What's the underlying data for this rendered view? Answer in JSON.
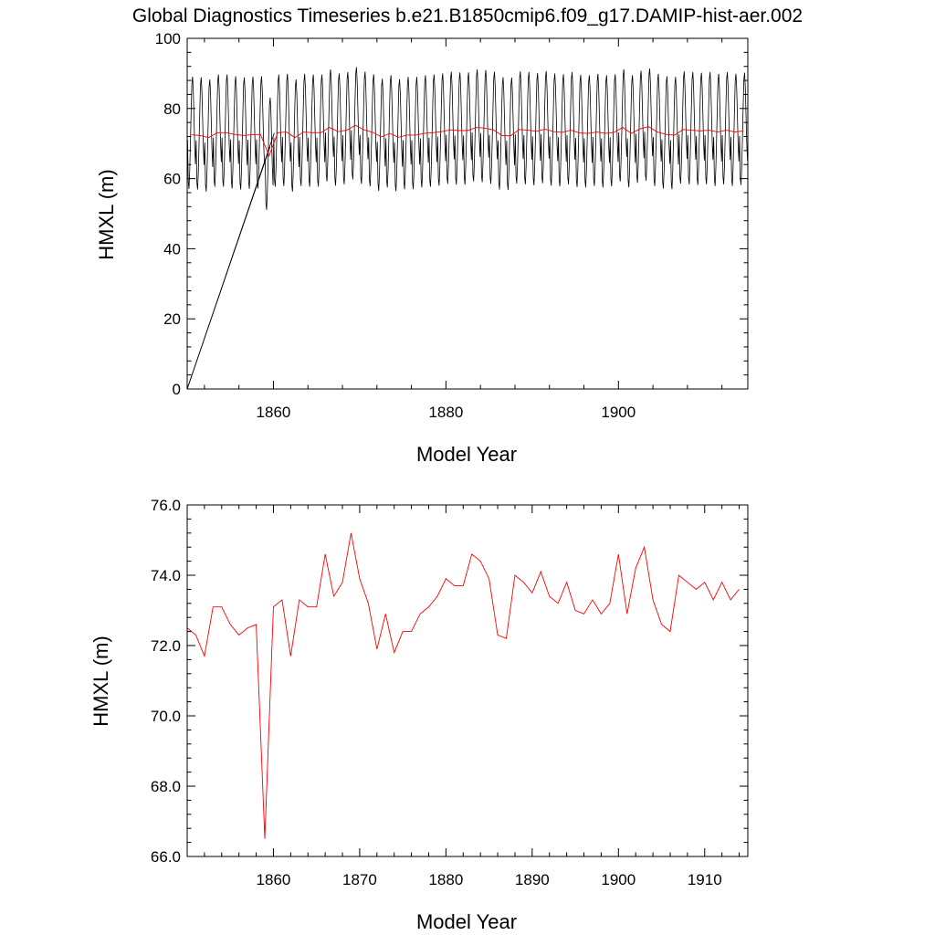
{
  "title": "Global Diagnostics Timeseries b.e21.B1850cmip6.f09_g17.DAMIP-hist-aer.002",
  "colors": {
    "monthly": "#000000",
    "annual": "#ff0000",
    "axes": "#000000"
  },
  "chart_data": [
    {
      "type": "line",
      "xlabel": "Model Year",
      "ylabel": "HMXL (m)",
      "xlim": [
        1850,
        1915
      ],
      "ylim": [
        0,
        100
      ],
      "xticks": [
        1860,
        1880,
        1900
      ],
      "xtick_labels": [
        "1860",
        "1880",
        "1900"
      ],
      "yticks": [
        0,
        20,
        40,
        60,
        80,
        100
      ],
      "ytick_labels": [
        "0",
        "20",
        "40",
        "60",
        "80",
        "100"
      ],
      "monthly_start_year": 1850,
      "monthly_cycle_m": [
        73,
        61,
        59,
        64,
        72,
        81,
        89,
        91,
        87,
        79,
        71,
        66
      ],
      "series": [
        {
          "values_by_year": [
            72.5,
            72.3,
            71.7,
            73.1,
            73.1,
            72.6,
            72.3,
            72.5,
            72.6,
            66.5,
            73.1,
            73.3,
            71.7,
            73.3,
            73.1,
            73.1,
            74.6,
            73.4,
            73.8,
            75.2,
            73.9,
            73.2,
            71.9,
            72.9,
            71.8,
            72.4,
            72.4,
            72.9,
            73.1,
            73.4,
            73.9,
            73.7,
            73.7,
            74.6,
            74.4,
            73.9,
            72.3,
            72.2,
            74.0,
            73.8,
            73.5,
            74.1,
            73.4,
            73.2,
            73.8,
            73.0,
            72.9,
            73.3,
            72.9,
            73.2,
            74.6,
            72.9,
            74.2,
            74.8,
            73.3,
            72.6,
            72.4,
            74.0,
            73.8,
            73.6,
            73.8,
            73.3,
            73.8,
            73.3,
            73.6
          ]
        }
      ]
    },
    {
      "type": "line",
      "xlabel": "Model Year",
      "ylabel": "HMXL (m)",
      "xlim": [
        1850,
        1915
      ],
      "ylim": [
        66.0,
        76.0
      ],
      "xticks": [
        1860,
        1870,
        1880,
        1890,
        1900,
        1910
      ],
      "xtick_labels": [
        "1860",
        "1870",
        "1880",
        "1890",
        "1900",
        "1910"
      ],
      "yticks": [
        66,
        68,
        70,
        72,
        74,
        76
      ],
      "ytick_labels": [
        "66.0",
        "68.0",
        "70.0",
        "72.0",
        "74.0",
        "76.0"
      ],
      "x": [
        1850,
        1851,
        1852,
        1853,
        1854,
        1855,
        1856,
        1857,
        1858,
        1859,
        1860,
        1861,
        1862,
        1863,
        1864,
        1865,
        1866,
        1867,
        1868,
        1869,
        1870,
        1871,
        1872,
        1873,
        1874,
        1875,
        1876,
        1877,
        1878,
        1879,
        1880,
        1881,
        1882,
        1883,
        1884,
        1885,
        1886,
        1887,
        1888,
        1889,
        1890,
        1891,
        1892,
        1893,
        1894,
        1895,
        1896,
        1897,
        1898,
        1899,
        1900,
        1901,
        1902,
        1903,
        1904,
        1905,
        1906,
        1907,
        1908,
        1909,
        1910,
        1911,
        1912,
        1913,
        1914
      ],
      "series": [
        {
          "values": [
            72.5,
            72.3,
            71.7,
            73.1,
            73.1,
            72.6,
            72.3,
            72.5,
            72.6,
            66.5,
            73.1,
            73.3,
            71.7,
            73.3,
            73.1,
            73.1,
            74.6,
            73.4,
            73.8,
            75.2,
            73.9,
            73.2,
            71.9,
            72.9,
            71.8,
            72.4,
            72.4,
            72.9,
            73.1,
            73.4,
            73.9,
            73.7,
            73.7,
            74.6,
            74.4,
            73.9,
            72.3,
            72.2,
            74.0,
            73.8,
            73.5,
            74.1,
            73.4,
            73.2,
            73.8,
            73.0,
            72.9,
            73.3,
            72.9,
            73.2,
            74.6,
            72.9,
            74.2,
            74.8,
            73.3,
            72.6,
            72.4,
            74.0,
            73.8,
            73.6,
            73.8,
            73.3,
            73.8,
            73.3,
            73.6
          ]
        }
      ]
    }
  ]
}
